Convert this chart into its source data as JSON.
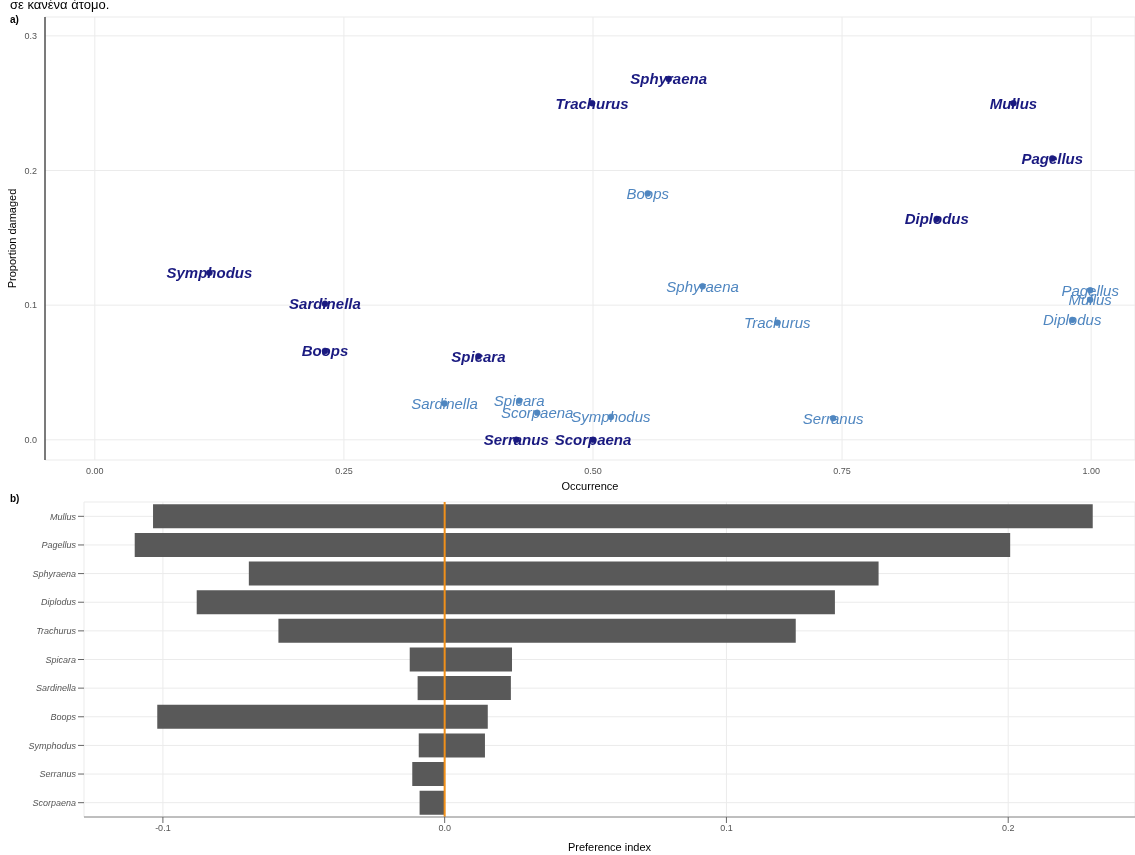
{
  "chart_data": [
    {
      "type": "scatter",
      "annotations": [
        "σε κανένα άτομο.",
        "a)"
      ],
      "xlabel": "Occurrence",
      "ylabel": "Proportion damaged",
      "xlim": [
        -0.05,
        1.044
      ],
      "ylim": [
        -0.015,
        0.314
      ],
      "xticks": [
        {
          "value": 0,
          "label": "0.00"
        },
        {
          "value": 0.25,
          "label": "0.25"
        },
        {
          "value": 0.5,
          "label": "0.50"
        },
        {
          "value": 0.75,
          "label": "0.75"
        },
        {
          "value": 1,
          "label": "1.00"
        }
      ],
      "yticks": [
        {
          "value": 0,
          "label": "0.0"
        },
        0.1,
        0.2,
        0.3
      ],
      "grid": true,
      "marker": "circle",
      "series": [
        {
          "color": "#1a1a80",
          "x": [
            0.115,
            0.231,
            0.231,
            0.385,
            0.423,
            0.5,
            0.499,
            0.576,
            0.922,
            0.961,
            0.845
          ],
          "values": [
            0.124,
            0.101,
            0.066,
            0.062,
            0,
            0,
            0.25,
            0.268,
            0.25,
            0.209,
            0.164
          ],
          "value_labels": [
            "Symphodus",
            "Sardinella",
            "Boops",
            "Spicara",
            "Serranus",
            "Scorpaena",
            "Trachurus",
            "Sphyraena",
            "Mullus",
            "Pagellus",
            "Diplodus"
          ]
        },
        {
          "color": "#4f86c0",
          "x": [
            0.555,
            0.61,
            0.685,
            0.741,
            0.518,
            0.999,
            0.999,
            0.981,
            0.351,
            0.426,
            0.444
          ],
          "values": [
            0.183,
            0.114,
            0.087,
            0.016,
            0.017,
            0.111,
            0.104,
            0.089,
            0.027,
            0.029,
            0.02
          ],
          "value_labels": [
            "Boops",
            "Sphyraena",
            "Trachurus",
            "Serranus",
            "Symphodus",
            "Pagellus",
            "Mullus",
            "Diplodus",
            "Sardinella",
            "Spicara",
            "Scorpaena"
          ]
        }
      ]
    },
    {
      "type": "bar",
      "orientation": "horizontal",
      "stacked": true,
      "annotations": [
        "b)"
      ],
      "xlabel": "Preference index",
      "categories": [
        "Mullus",
        "Pagellus",
        "Sphyraena",
        "Diplodus",
        "Trachurus",
        "Spicara",
        "Sardinella",
        "Boops",
        "Symphodus",
        "Serranus",
        "Scorpaena"
      ],
      "xlim": [
        -0.128,
        0.245
      ],
      "xticks": [
        -0.1,
        {
          "value": 0,
          "label": "0.0"
        },
        0.1,
        0.2
      ],
      "grid": true,
      "ref_lines": [
        {
          "axis": "x",
          "value": 0,
          "color": "#f0901a"
        }
      ],
      "series": [
        {
          "color": "#595959",
          "values": [
            -0.1035,
            -0.11,
            -0.0695,
            -0.088,
            -0.059,
            -0.0124,
            -0.0096,
            -0.102,
            -0.0092,
            -0.0115,
            -0.0089
          ]
        },
        {
          "color": "#595959",
          "values": [
            0.23,
            0.2007,
            0.154,
            0.1385,
            0.1246,
            0.0239,
            0.0235,
            0.0153,
            0.0143,
            0,
            0
          ]
        }
      ]
    }
  ]
}
